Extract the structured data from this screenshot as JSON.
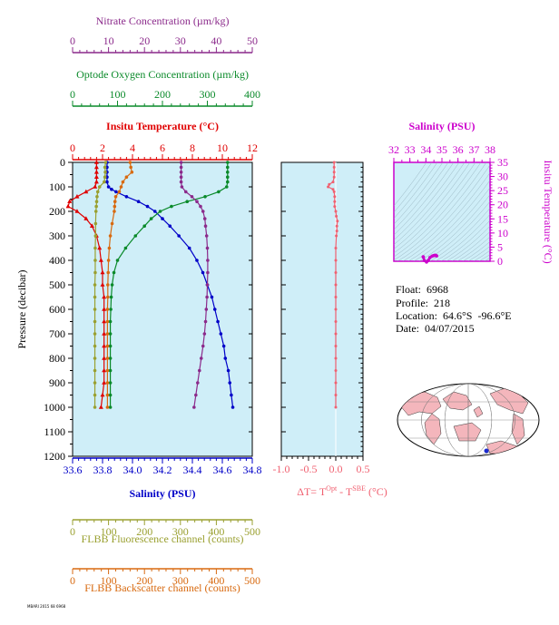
{
  "float_info": {
    "float_line": "Float:  6968",
    "profile_line": "Profile:  218",
    "location_line": "Location:  64.6°S  -96.6°E",
    "date_line": "Date:  04/07/2015"
  },
  "footer_code": "MBARI 2015 68 6968",
  "chart_data": {
    "type": "line",
    "panels": [
      {
        "name": "profile-panel",
        "ylabel": "Pressure (decibar)",
        "ylim": [
          1200,
          0
        ],
        "yticks": [
          0,
          100,
          200,
          300,
          400,
          500,
          600,
          700,
          800,
          900,
          1000,
          1100,
          1200
        ],
        "axes": [
          {
            "key": "nitrate",
            "label": "Nitrate Concentration (µm/kg)",
            "range": [
              0,
              50
            ],
            "ticks": [
              0,
              10,
              20,
              30,
              40,
              50
            ],
            "color": "#8b2a8b"
          },
          {
            "key": "oxygen",
            "label": "Optode Oxygen Concentration (µm/kg)",
            "range": [
              0,
              400
            ],
            "ticks": [
              0,
              100,
              200,
              300,
              400
            ],
            "color": "#0a8a2a"
          },
          {
            "key": "temperature",
            "label": "Insitu Temperature (°C)",
            "range": [
              0,
              12
            ],
            "ticks": [
              0,
              2,
              4,
              6,
              8,
              10,
              12
            ],
            "color": "#e00000"
          },
          {
            "key": "salinity",
            "label": "Salinity (PSU)",
            "range": [
              33.6,
              34.8
            ],
            "ticks": [
              "33.6",
              "33.8",
              "34.0",
              "34.2",
              "34.4",
              "34.6",
              "34.8"
            ],
            "color": "#0000c8"
          },
          {
            "key": "fluorescence",
            "label": "FLBB Fluorescence channel (counts)",
            "range": [
              0,
              500
            ],
            "ticks": [
              0,
              100,
              200,
              300,
              400,
              500
            ],
            "color": "#9aa030"
          },
          {
            "key": "backscatter",
            "label": "FLBB Backscatter channel (counts)",
            "range": [
              0,
              500
            ],
            "ticks": [
              0,
              100,
              200,
              300,
              400,
              500
            ],
            "color": "#d86a10"
          }
        ],
        "series": [
          {
            "key": "temperature",
            "color": "#e00000",
            "marker": "triangle",
            "pressure": [
              0,
              20,
              40,
              60,
              80,
              100,
              120,
              140,
              160,
              180,
              200,
              230,
              260,
              300,
              350,
              400,
              450,
              500,
              550,
              600,
              650,
              700,
              750,
              800,
              850,
              900,
              950,
              1000
            ],
            "values": [
              1.6,
              1.6,
              1.6,
              1.6,
              1.6,
              1.5,
              0.9,
              0.3,
              -0.2,
              -0.3,
              0.3,
              0.9,
              1.3,
              1.6,
              1.8,
              1.9,
              2.0,
              2.0,
              2.1,
              2.1,
              2.1,
              2.1,
              2.1,
              2.1,
              2.1,
              2.1,
              2.0,
              1.9
            ]
          },
          {
            "key": "salinity",
            "color": "#0000c8",
            "marker": "circle",
            "pressure": [
              0,
              20,
              40,
              60,
              80,
              100,
              110,
              120,
              140,
              160,
              180,
              200,
              230,
              260,
              300,
              350,
              400,
              450,
              500,
              550,
              600,
              650,
              700,
              750,
              800,
              850,
              900,
              950,
              1000
            ],
            "values": [
              33.83,
              33.83,
              33.83,
              33.83,
              33.83,
              33.84,
              33.86,
              33.89,
              33.96,
              34.04,
              34.1,
              34.15,
              34.2,
              34.25,
              34.31,
              34.38,
              34.43,
              34.47,
              34.5,
              34.53,
              34.55,
              34.57,
              34.59,
              34.61,
              34.62,
              34.64,
              34.65,
              34.66,
              34.67
            ]
          },
          {
            "key": "oxygen",
            "color": "#0a8a2a",
            "marker": "circle",
            "pressure": [
              0,
              20,
              40,
              60,
              80,
              100,
              120,
              140,
              160,
              180,
              200,
              230,
              260,
              300,
              350,
              400,
              450,
              500,
              550,
              600,
              650,
              700,
              750,
              800,
              850,
              900,
              950,
              1000
            ],
            "values": [
              345,
              345,
              345,
              345,
              345,
              343,
              325,
              295,
              255,
              220,
              195,
              175,
              160,
              140,
              118,
              100,
              92,
              88,
              86,
              85,
              84,
              84,
              84,
              84,
              84,
              84,
              84,
              84
            ]
          },
          {
            "key": "nitrate",
            "color": "#8b2a8b",
            "marker": "circle",
            "pressure": [
              0,
              20,
              40,
              60,
              80,
              100,
              120,
              140,
              160,
              180,
              200,
              230,
              260,
              300,
              350,
              400,
              450,
              500,
              550,
              600,
              650,
              700,
              750,
              800,
              850,
              900,
              950,
              1000
            ],
            "values": [
              30.2,
              30.2,
              30.2,
              30.2,
              30.2,
              30.4,
              31.5,
              33.2,
              34.6,
              35.6,
              36.3,
              36.8,
              37.0,
              37.3,
              37.5,
              37.6,
              37.6,
              37.5,
              37.4,
              37.2,
              37.0,
              36.7,
              36.3,
              35.8,
              35.3,
              34.8,
              34.3,
              33.8
            ]
          },
          {
            "key": "fluorescence",
            "color": "#9aa030",
            "marker": "circle",
            "pressure": [
              0,
              20,
              40,
              60,
              80,
              100,
              120,
              140,
              160,
              180,
              200,
              250,
              300,
              350,
              400,
              450,
              500,
              550,
              600,
              650,
              700,
              750,
              800,
              850,
              900,
              950,
              1000
            ],
            "values": [
              92,
              90,
              91,
              90,
              88,
              75,
              70,
              68,
              67,
              66,
              65,
              64,
              64,
              63,
              63,
              63,
              62,
              62,
              62,
              62,
              62,
              62,
              62,
              62,
              62,
              62,
              62
            ]
          },
          {
            "key": "backscatter",
            "color": "#d86a10",
            "marker": "circle",
            "pressure": [
              0,
              20,
              40,
              60,
              80,
              100,
              120,
              140,
              160,
              180,
              200,
              250,
              300,
              350,
              400,
              450,
              500,
              550,
              600,
              650,
              700,
              750,
              800,
              850,
              900,
              950,
              1000
            ],
            "values": [
              160,
              162,
              165,
              150,
              140,
              135,
              130,
              120,
              118,
              117,
              116,
              110,
              105,
              102,
              100,
              99,
              98,
              98,
              97,
              97,
              97,
              97,
              97,
              97,
              97,
              97,
              97
            ]
          }
        ]
      },
      {
        "name": "delta-t-panel",
        "xlabel": "ΔT= T^Opt - T^SBE (°C)",
        "xlabel_parts": {
          "prefix": "ΔT= T",
          "sup1": "Opt",
          "mid": " - T",
          "sup2": "SBE",
          "suffix": " (°C)"
        },
        "xlim": [
          -1.0,
          0.5
        ],
        "xticks": [
          "-1.0",
          "-0.5",
          "0.0",
          "0.5"
        ],
        "color": "#f06070",
        "pressure": [
          0,
          20,
          40,
          60,
          80,
          90,
          100,
          110,
          120,
          140,
          160,
          180,
          200,
          220,
          240,
          260,
          280,
          300,
          350,
          400,
          450,
          500,
          550,
          600,
          650,
          700,
          750,
          800,
          850,
          900,
          950,
          1000
        ],
        "values": [
          -0.03,
          -0.03,
          -0.03,
          -0.03,
          -0.05,
          -0.12,
          -0.14,
          -0.05,
          -0.03,
          -0.02,
          -0.02,
          -0.02,
          0.0,
          0.01,
          0.03,
          0.02,
          0.02,
          0.01,
          0.0,
          0.0,
          0.0,
          0.0,
          0.0,
          0.0,
          0.0,
          0.0,
          0.0,
          0.0,
          0.0,
          0.0,
          0.0,
          0.0
        ]
      },
      {
        "name": "ts-panel",
        "xlabel": "Salinity (PSU)",
        "ylabel": "Insitu Temperature (°C)",
        "xlim": [
          32,
          38
        ],
        "xticks": [
          32,
          33,
          34,
          35,
          36,
          37,
          38
        ],
        "ylim": [
          0,
          35
        ],
        "yticks": [
          0,
          5,
          10,
          15,
          20,
          25,
          30,
          35
        ],
        "color": "#cc00cc",
        "salinity": [
          33.83,
          33.84,
          33.9,
          34.04,
          34.15,
          34.25,
          34.38,
          34.47,
          34.55,
          34.61,
          34.67
        ],
        "temperature": [
          1.6,
          1.5,
          0.3,
          -0.3,
          0.3,
          1.3,
          1.8,
          2.0,
          2.1,
          2.1,
          1.9
        ]
      }
    ]
  }
}
